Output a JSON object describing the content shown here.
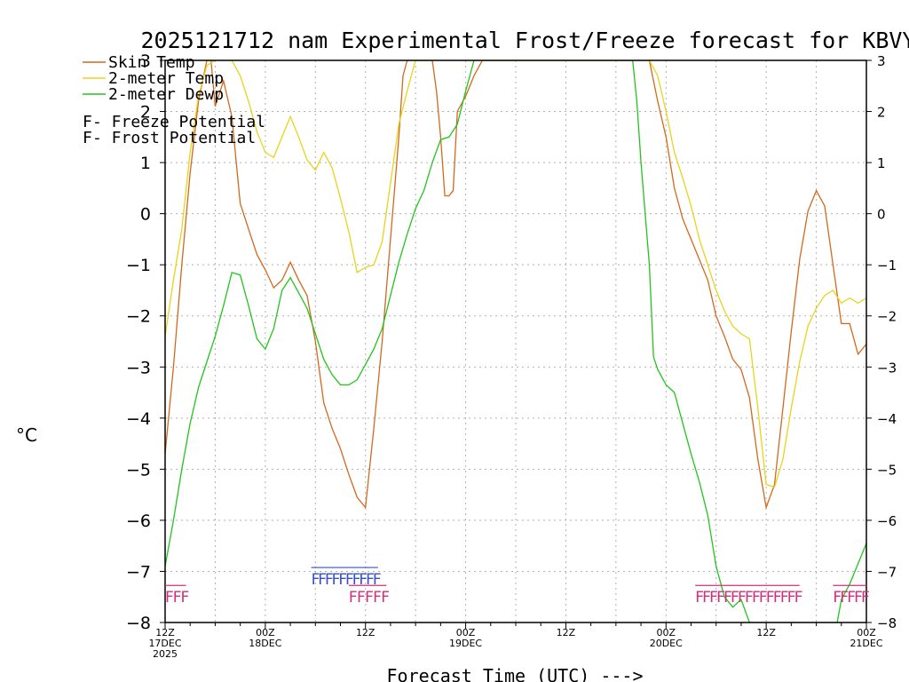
{
  "chart_data": {
    "type": "line",
    "title": "2025121712 nam Experimental Frost/Freeze forecast for KBVY",
    "xlabel": "Forecast Time (UTC) --->",
    "ylabel": "°C",
    "ylim": [
      -8,
      3
    ],
    "xlim": [
      0,
      84
    ],
    "yticks": [
      3,
      2,
      1,
      0,
      -1,
      -2,
      -3,
      -4,
      -5,
      -6,
      -7,
      -8
    ],
    "ytick_labels_left": [
      "3",
      "2",
      "1",
      "0",
      "−1",
      "−2",
      "−3",
      "−4",
      "−5",
      "−6",
      "−7",
      "−8"
    ],
    "ytick_labels_right": [
      "3",
      "2",
      "1",
      "0",
      "−1",
      "−2",
      "−3",
      "−4",
      "−5",
      "−6",
      "−7",
      "−8"
    ],
    "xticks": [
      {
        "h": 0,
        "lines": [
          "12Z",
          "17DEC",
          "2025"
        ]
      },
      {
        "h": 12,
        "lines": [
          "00Z",
          "18DEC"
        ]
      },
      {
        "h": 24,
        "lines": [
          "12Z"
        ]
      },
      {
        "h": 36,
        "lines": [
          "00Z",
          "19DEC"
        ]
      },
      {
        "h": 48,
        "lines": [
          "12Z"
        ]
      },
      {
        "h": 60,
        "lines": [
          "00Z",
          "20DEC"
        ]
      },
      {
        "h": 72,
        "lines": [
          "12Z"
        ]
      },
      {
        "h": 84,
        "lines": [
          "00Z",
          "21DEC"
        ]
      }
    ],
    "series": [
      {
        "name": "Skin Temp",
        "color": "#d2691e",
        "points": [
          [
            0,
            -4.7
          ],
          [
            1,
            -3.0
          ],
          [
            2,
            -1.0
          ],
          [
            3,
            0.8
          ],
          [
            4,
            2.2
          ],
          [
            5,
            3.0
          ],
          [
            5.5,
            3.0
          ],
          [
            6,
            2.1
          ],
          [
            7,
            2.6
          ],
          [
            8,
            1.9
          ],
          [
            9,
            0.2
          ],
          [
            10,
            -0.3
          ],
          [
            11,
            -0.8
          ],
          [
            12,
            -1.1
          ],
          [
            13,
            -1.45
          ],
          [
            14,
            -1.3
          ],
          [
            15,
            -0.95
          ],
          [
            16,
            -1.3
          ],
          [
            17,
            -1.6
          ],
          [
            18,
            -2.5
          ],
          [
            19,
            -3.7
          ],
          [
            20,
            -4.2
          ],
          [
            21,
            -4.6
          ],
          [
            22,
            -5.1
          ],
          [
            23,
            -5.55
          ],
          [
            24,
            -5.75
          ],
          [
            25,
            -4.2
          ],
          [
            26,
            -2.5
          ],
          [
            27,
            -0.5
          ],
          [
            28,
            1.5
          ],
          [
            28.5,
            2.7
          ],
          [
            29,
            3.0
          ],
          [
            30,
            3.0
          ],
          [
            31,
            3.0
          ],
          [
            32,
            3.0
          ],
          [
            32.5,
            2.4
          ],
          [
            33,
            1.5
          ],
          [
            33.5,
            0.35
          ],
          [
            34,
            0.35
          ],
          [
            34.5,
            0.45
          ],
          [
            35,
            2.0
          ],
          [
            36,
            2.3
          ],
          [
            37,
            2.7
          ],
          [
            38,
            3.0
          ],
          [
            58,
            3.0
          ],
          [
            59,
            2.2
          ],
          [
            60,
            1.5
          ],
          [
            61,
            0.5
          ],
          [
            62,
            -0.1
          ],
          [
            63,
            -0.5
          ],
          [
            64,
            -0.9
          ],
          [
            65,
            -1.3
          ],
          [
            66,
            -2.0
          ],
          [
            67,
            -2.4
          ],
          [
            68,
            -2.85
          ],
          [
            69,
            -3.05
          ],
          [
            70,
            -3.6
          ],
          [
            71,
            -4.8
          ],
          [
            72,
            -5.75
          ],
          [
            73,
            -5.3
          ],
          [
            74,
            -3.8
          ],
          [
            75,
            -2.3
          ],
          [
            76,
            -0.9
          ],
          [
            77,
            0.05
          ],
          [
            78,
            0.45
          ],
          [
            79,
            0.15
          ],
          [
            80,
            -1.0
          ],
          [
            81,
            -2.15
          ],
          [
            82,
            -2.15
          ],
          [
            83,
            -2.75
          ],
          [
            84,
            -2.55
          ]
        ]
      },
      {
        "name": "2-meter Temp",
        "color": "#e8d31b",
        "points": [
          [
            0,
            -2.4
          ],
          [
            1,
            -1.3
          ],
          [
            2,
            -0.3
          ],
          [
            3,
            1.2
          ],
          [
            4,
            2.3
          ],
          [
            5,
            2.9
          ],
          [
            6,
            3.0
          ],
          [
            7,
            3.0
          ],
          [
            8,
            3.0
          ],
          [
            9,
            2.7
          ],
          [
            10,
            2.2
          ],
          [
            11,
            1.6
          ],
          [
            12,
            1.2
          ],
          [
            13,
            1.1
          ],
          [
            14,
            1.5
          ],
          [
            15,
            1.9
          ],
          [
            16,
            1.5
          ],
          [
            17,
            1.05
          ],
          [
            18,
            0.85
          ],
          [
            19,
            1.2
          ],
          [
            20,
            0.9
          ],
          [
            21,
            0.3
          ],
          [
            22,
            -0.35
          ],
          [
            23,
            -1.15
          ],
          [
            24,
            -1.05
          ],
          [
            25,
            -1.0
          ],
          [
            26,
            -0.55
          ],
          [
            27,
            0.6
          ],
          [
            28,
            1.75
          ],
          [
            29,
            2.4
          ],
          [
            30,
            3.0
          ],
          [
            31,
            3.0
          ],
          [
            58,
            3.0
          ],
          [
            59,
            2.7
          ],
          [
            60,
            2.0
          ],
          [
            61,
            1.2
          ],
          [
            62,
            0.7
          ],
          [
            63,
            0.15
          ],
          [
            64,
            -0.5
          ],
          [
            65,
            -1.0
          ],
          [
            66,
            -1.5
          ],
          [
            67,
            -1.9
          ],
          [
            68,
            -2.2
          ],
          [
            69,
            -2.35
          ],
          [
            70,
            -2.45
          ],
          [
            71,
            -3.8
          ],
          [
            72,
            -5.3
          ],
          [
            73,
            -5.35
          ],
          [
            74,
            -4.8
          ],
          [
            75,
            -3.8
          ],
          [
            76,
            -2.9
          ],
          [
            77,
            -2.2
          ],
          [
            78,
            -1.85
          ],
          [
            79,
            -1.6
          ],
          [
            80,
            -1.5
          ],
          [
            81,
            -1.75
          ],
          [
            82,
            -1.65
          ],
          [
            83,
            -1.75
          ],
          [
            84,
            -1.65
          ]
        ]
      },
      {
        "name": "2-meter Dewp",
        "color": "#22c41e",
        "points": [
          [
            0,
            -6.9
          ],
          [
            1,
            -6.0
          ],
          [
            2,
            -5.0
          ],
          [
            3,
            -4.1
          ],
          [
            4,
            -3.4
          ],
          [
            5,
            -2.9
          ],
          [
            6,
            -2.4
          ],
          [
            7,
            -1.8
          ],
          [
            8,
            -1.15
          ],
          [
            9,
            -1.2
          ],
          [
            10,
            -1.8
          ],
          [
            11,
            -2.45
          ],
          [
            12,
            -2.65
          ],
          [
            13,
            -2.25
          ],
          [
            14,
            -1.5
          ],
          [
            15,
            -1.25
          ],
          [
            16,
            -1.55
          ],
          [
            17,
            -1.85
          ],
          [
            18,
            -2.35
          ],
          [
            19,
            -2.85
          ],
          [
            20,
            -3.15
          ],
          [
            21,
            -3.35
          ],
          [
            22,
            -3.35
          ],
          [
            23,
            -3.25
          ],
          [
            24,
            -2.95
          ],
          [
            25,
            -2.65
          ],
          [
            26,
            -2.25
          ],
          [
            27,
            -1.6
          ],
          [
            28,
            -0.95
          ],
          [
            29,
            -0.4
          ],
          [
            30,
            0.1
          ],
          [
            31,
            0.45
          ],
          [
            32,
            1.0
          ],
          [
            33,
            1.45
          ],
          [
            34,
            1.5
          ],
          [
            35,
            1.75
          ],
          [
            36,
            2.4
          ],
          [
            37,
            3.0
          ],
          [
            56,
            3.0
          ],
          [
            56.5,
            2.2
          ],
          [
            57,
            1.0
          ],
          [
            58,
            -1.0
          ],
          [
            58.5,
            -2.8
          ],
          [
            59,
            -3.05
          ],
          [
            60,
            -3.35
          ],
          [
            61,
            -3.5
          ],
          [
            62,
            -4.1
          ],
          [
            63,
            -4.7
          ],
          [
            64,
            -5.25
          ],
          [
            65,
            -5.9
          ],
          [
            66,
            -6.9
          ],
          [
            67,
            -7.5
          ],
          [
            68,
            -7.7
          ],
          [
            69,
            -7.55
          ],
          [
            70,
            -8.0
          ],
          [
            80.5,
            -8.0
          ],
          [
            81,
            -7.55
          ],
          [
            82,
            -7.25
          ],
          [
            83,
            -6.85
          ],
          [
            84,
            -6.45
          ]
        ]
      }
    ],
    "legend": [
      {
        "label": "Skin Temp",
        "color": "#d2691e"
      },
      {
        "label": "2-meter Temp",
        "color": "#e8d31b"
      },
      {
        "label": "2-meter Dewp",
        "color": "#22c41e"
      }
    ],
    "potential_legend": [
      {
        "letter": "F",
        "text": " - Freeze Potential",
        "color": "#d0307a"
      },
      {
        "letter": "F",
        "text": " - Frost Potential",
        "color": "#3850c8"
      }
    ],
    "freeze_marks": [
      {
        "start": 0,
        "end": 2.5,
        "count": 3
      },
      {
        "start": 22,
        "end": 26.5,
        "count": 5
      },
      {
        "start": 63.5,
        "end": 76,
        "count": 15
      },
      {
        "start": 80,
        "end": 84,
        "count": 5
      }
    ],
    "frost_marks": [
      {
        "start": 17.5,
        "end": 25.5,
        "count": 10
      }
    ],
    "freeze_level": -7.5,
    "frost_level": -7.15
  }
}
